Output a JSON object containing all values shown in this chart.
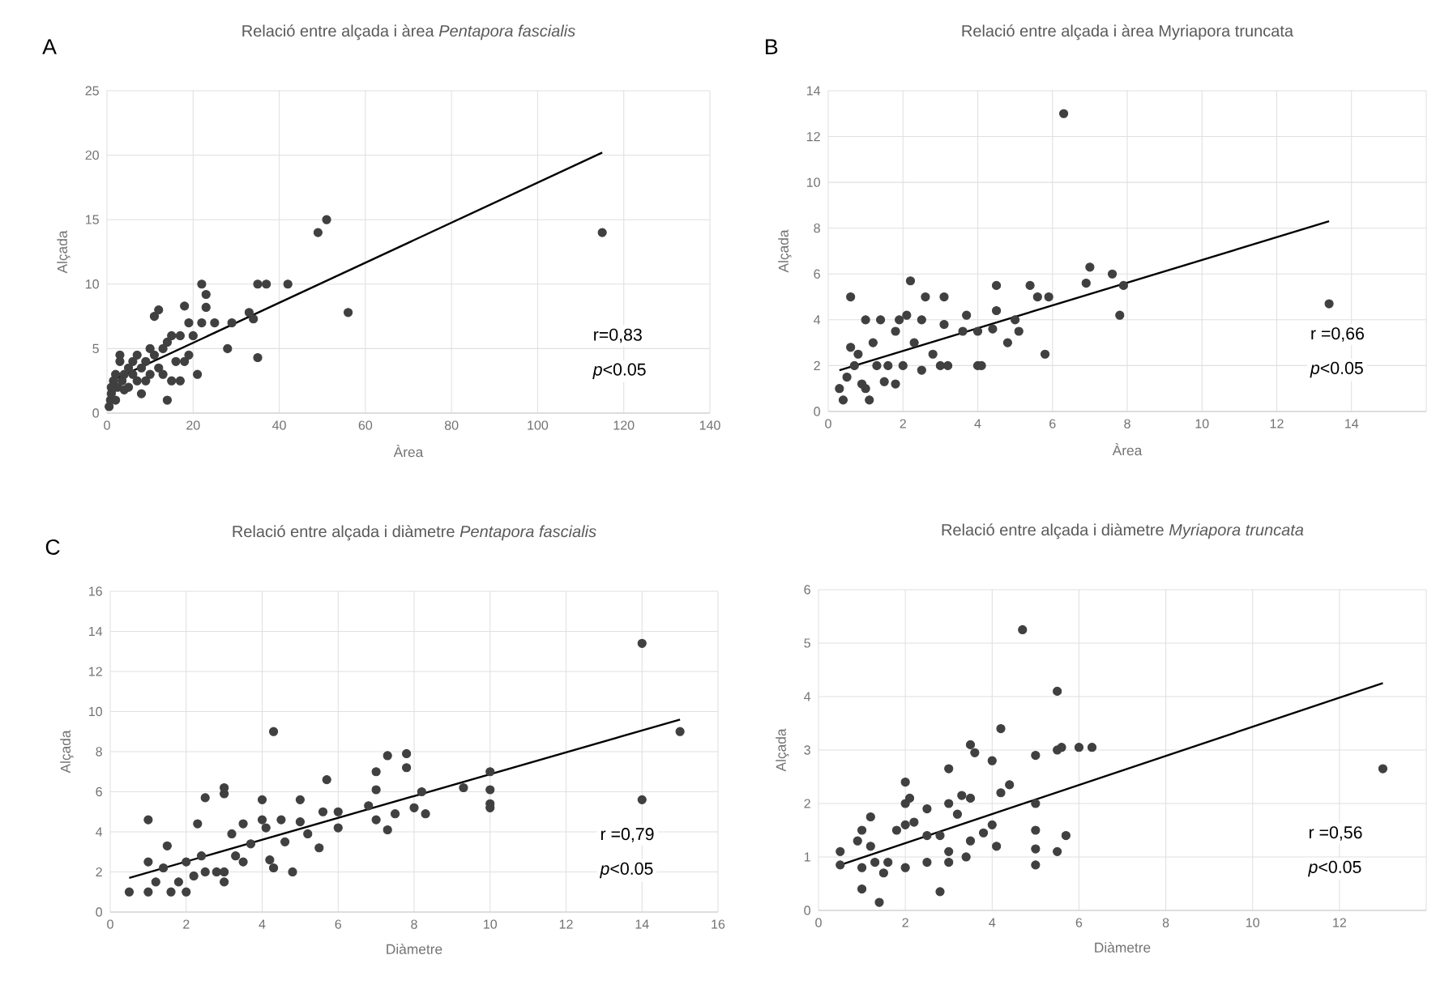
{
  "chart_data": [
    {
      "type": "scatter",
      "title": "Relació entre alçada i àrea *Pentapora fascialis*",
      "xlabel": "Àrea",
      "ylabel": "Alçada",
      "xlim": [
        0,
        140
      ],
      "ylim": [
        0,
        25
      ],
      "xticks": [
        0,
        20,
        40,
        60,
        80,
        100,
        120,
        140
      ],
      "yticks": [
        0,
        5,
        10,
        15,
        20,
        25
      ],
      "grid": true,
      "annotations": [
        "A",
        "r=0,83",
        "*p*<0.05"
      ],
      "series": [
        {
          "type": "scatter",
          "color": "#404040",
          "marker": "circle",
          "x": [
            0.5,
            0.8,
            1,
            1,
            1.2,
            1.5,
            2,
            2,
            2.5,
            3,
            3,
            3.5,
            4,
            4,
            5,
            5,
            6,
            6,
            7,
            7,
            8,
            8,
            9,
            9,
            10,
            10,
            11,
            11,
            12,
            12,
            13,
            13,
            14,
            14,
            15,
            15,
            16,
            17,
            17,
            18,
            18,
            19,
            19,
            20,
            21,
            22,
            22,
            23,
            23,
            25,
            28,
            29,
            33,
            34,
            35,
            35,
            37,
            42,
            49,
            51,
            56,
            115
          ],
          "values": [
            0.5,
            1,
            1.5,
            2,
            1.8,
            2.5,
            1,
            3,
            2,
            4.5,
            4,
            2.5,
            3,
            1.8,
            3.5,
            2,
            4,
            3,
            2.5,
            4.5,
            1.5,
            3.5,
            4,
            2.5,
            5,
            3,
            4.5,
            7.5,
            8,
            3.5,
            5,
            3,
            1,
            5.5,
            6,
            2.5,
            4,
            2.5,
            6,
            8.3,
            4,
            7,
            4.5,
            6,
            3,
            10,
            7,
            9.2,
            8.2,
            7,
            5,
            7,
            7.8,
            7.3,
            4.3,
            10,
            10,
            10,
            14,
            15,
            7.8,
            14
          ]
        },
        {
          "type": "line",
          "color": "#000000",
          "marker": "none",
          "x": [
            1,
            115
          ],
          "values": [
            2.5,
            20.2
          ]
        }
      ]
    },
    {
      "type": "scatter",
      "title": "Relació entre alçada i àrea Myriapora truncata",
      "xlabel": "Àrea",
      "ylabel": "Alçada",
      "xlim": [
        0,
        16
      ],
      "ylim": [
        0,
        14
      ],
      "xticks": [
        0,
        2,
        4,
        6,
        8,
        10,
        12,
        14,
        {
          "value": 16,
          "label": null
        }
      ],
      "yticks": [
        0,
        2,
        4,
        6,
        8,
        10,
        12,
        14
      ],
      "grid": true,
      "annotations": [
        "B",
        "r =0,66",
        "*p*<0.05"
      ],
      "series": [
        {
          "type": "scatter",
          "color": "#404040",
          "marker": "circle",
          "x": [
            0.3,
            0.4,
            0.5,
            0.6,
            0.6,
            0.7,
            0.8,
            0.9,
            1,
            1,
            1.1,
            1.2,
            1.3,
            1.4,
            1.5,
            1.6,
            1.8,
            1.8,
            1.9,
            2,
            2.1,
            2.2,
            2.3,
            2.5,
            2.5,
            2.6,
            2.8,
            3,
            3.1,
            3.1,
            3.2,
            3.6,
            3.7,
            4,
            4,
            4.1,
            4.4,
            4.5,
            4.5,
            4.8,
            5,
            5.1,
            5.4,
            5.6,
            5.8,
            5.9,
            6.3,
            6.9,
            7,
            7.6,
            7.8,
            7.9,
            13.4
          ],
          "values": [
            1,
            0.5,
            1.5,
            5,
            2.8,
            2,
            2.5,
            1.2,
            4,
            1,
            0.5,
            3,
            2,
            4,
            1.3,
            2,
            3.5,
            1.2,
            4,
            2,
            4.2,
            5.7,
            3,
            4,
            1.8,
            5,
            2.5,
            2,
            5,
            3.8,
            2,
            3.5,
            4.2,
            3.5,
            2,
            2,
            3.6,
            4.4,
            5.5,
            3,
            4,
            3.5,
            5.5,
            5,
            2.5,
            5,
            13,
            5.6,
            6.3,
            6,
            4.2,
            5.5,
            4.7
          ]
        },
        {
          "type": "line",
          "color": "#000000",
          "marker": "none",
          "x": [
            0.3,
            13.4
          ],
          "values": [
            1.8,
            8.3
          ]
        }
      ]
    },
    {
      "type": "scatter",
      "title": "Relació entre alçada i diàmetre *Pentapora fascialis*",
      "xlabel": "Diàmetre",
      "ylabel": "Alçada",
      "xlim": [
        0,
        16
      ],
      "ylim": [
        0,
        16
      ],
      "xticks": [
        0,
        2,
        4,
        6,
        8,
        10,
        12,
        14,
        16
      ],
      "yticks": [
        0,
        2,
        4,
        6,
        8,
        10,
        12,
        14,
        16
      ],
      "grid": true,
      "annotations": [
        "C",
        "r =0,79",
        "*p*<0.05"
      ],
      "series": [
        {
          "type": "scatter",
          "color": "#404040",
          "marker": "circle",
          "x": [
            0.5,
            1,
            1,
            1,
            1.2,
            1.4,
            1.5,
            1.6,
            1.8,
            2,
            2,
            2.2,
            2.3,
            2.4,
            2.5,
            2.5,
            2.8,
            3,
            3,
            3,
            3,
            3.2,
            3.3,
            3.5,
            3.5,
            3.7,
            4,
            4,
            4.1,
            4.2,
            4.3,
            4.3,
            4.5,
            4.6,
            4.8,
            5,
            5,
            5.2,
            5.5,
            5.6,
            5.7,
            6,
            6,
            6.8,
            7,
            7,
            7,
            7.3,
            7.3,
            7.5,
            7.8,
            7.8,
            8,
            8.2,
            8.3,
            9.3,
            10,
            10,
            10,
            10,
            14,
            14,
            15
          ],
          "values": [
            1,
            4.6,
            2.5,
            1,
            1.5,
            2.2,
            3.3,
            1,
            1.5,
            2.5,
            1,
            1.8,
            4.4,
            2.8,
            5.7,
            2,
            2,
            6.2,
            5.9,
            1.5,
            2,
            3.9,
            2.8,
            4.4,
            2.5,
            3.4,
            5.6,
            4.6,
            4.2,
            2.6,
            9,
            2.2,
            4.6,
            3.5,
            2,
            5.6,
            4.5,
            3.9,
            3.2,
            5,
            6.6,
            4.2,
            5,
            5.3,
            7,
            6.1,
            4.6,
            7.8,
            4.1,
            4.9,
            7.9,
            7.2,
            5.2,
            6,
            4.9,
            6.2,
            7,
            6.1,
            5.4,
            5.2,
            13.4,
            5.6,
            9
          ]
        },
        {
          "type": "line",
          "color": "#000000",
          "marker": "none",
          "x": [
            0.5,
            15
          ],
          "values": [
            1.7,
            9.6
          ]
        }
      ]
    },
    {
      "type": "scatter",
      "title": "Relació entre alçada i diàmetre *Myriapora truncata*",
      "xlabel": "Diàmetre",
      "ylabel": "Alçada",
      "xlim": [
        0,
        14
      ],
      "ylim": [
        0,
        6
      ],
      "xticks": [
        0,
        2,
        4,
        6,
        8,
        10,
        12,
        {
          "value": 14,
          "label": null
        }
      ],
      "yticks": [
        0,
        1,
        2,
        3,
        4,
        5,
        6
      ],
      "grid": true,
      "annotations": [
        "r =0,56",
        "*p*<0.05"
      ],
      "series": [
        {
          "type": "scatter",
          "color": "#404040",
          "marker": "circle",
          "x": [
            0.5,
            0.5,
            0.9,
            1,
            1,
            1,
            1.2,
            1.2,
            1.3,
            1.4,
            1.5,
            1.6,
            1.8,
            2,
            2,
            2,
            2,
            2.1,
            2.2,
            2.5,
            2.5,
            2.5,
            2.8,
            2.8,
            3,
            3,
            3,
            3,
            3.2,
            3.3,
            3.4,
            3.5,
            3.5,
            3.5,
            3.6,
            3.8,
            4,
            4,
            4.1,
            4.2,
            4.2,
            4.4,
            4.7,
            5,
            5,
            5,
            5,
            5,
            5.5,
            5.5,
            5.5,
            5.6,
            5.7,
            6,
            6.3,
            13
          ],
          "values": [
            1.1,
            0.85,
            1.3,
            1.5,
            0.8,
            0.4,
            1.75,
            1.2,
            0.9,
            0.15,
            0.7,
            0.9,
            1.5,
            2.4,
            2,
            1.6,
            0.8,
            2.1,
            1.65,
            1.9,
            1.4,
            0.9,
            0.35,
            1.4,
            2.65,
            2,
            1.1,
            0.9,
            1.8,
            2.15,
            1,
            3.1,
            2.1,
            1.3,
            2.95,
            1.45,
            2.8,
            1.6,
            1.2,
            3.4,
            2.2,
            2.35,
            5.25,
            2.9,
            2,
            1.5,
            1.15,
            0.85,
            4.1,
            3,
            1.1,
            3.05,
            1.4,
            3.05,
            3.05,
            2.65
          ]
        },
        {
          "type": "line",
          "color": "#000000",
          "marker": "none",
          "x": [
            0.5,
            13
          ],
          "values": [
            0.85,
            4.25
          ]
        }
      ]
    }
  ]
}
